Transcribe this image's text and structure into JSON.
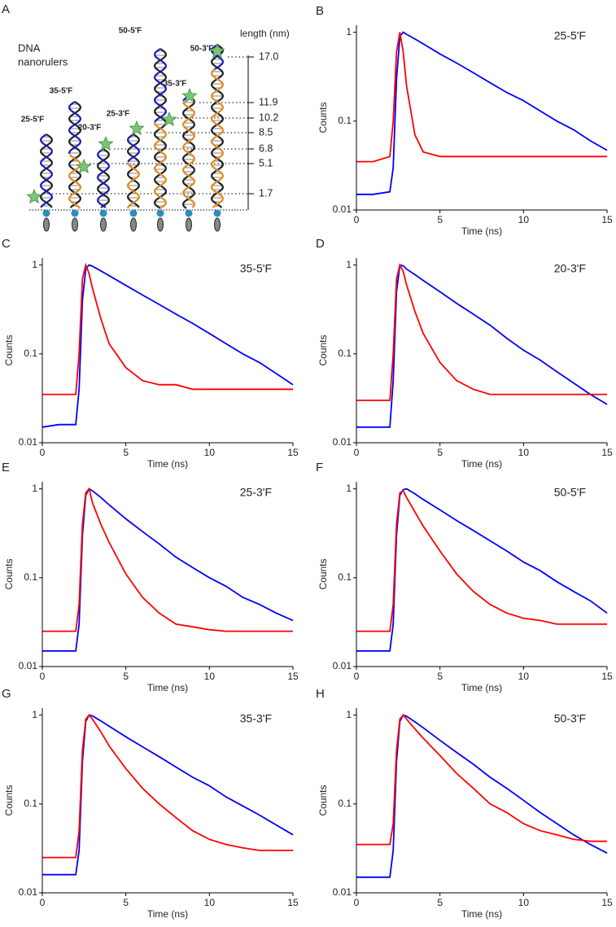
{
  "panel_a": {
    "panel_label": "A",
    "title_lines": [
      "DNA",
      "nanorulers"
    ],
    "axis_label": "length (nm)",
    "lengths": [
      "17.0",
      "11.9",
      "10.2",
      "8.5",
      "6.8",
      "5.1",
      "1.7"
    ],
    "constructs": [
      "25-5'F",
      "35-5'F",
      "20-3'F",
      "25-3'F",
      "50-5'F",
      "35-3'F",
      "50-3'F"
    ]
  },
  "chart_data": [
    {
      "type": "line",
      "panel_label": "B",
      "title": "25-5'F",
      "xlabel": "Time (ns)",
      "ylabel": "Counts",
      "log_y": true,
      "xlim": [
        0,
        15
      ],
      "ylim": [
        0.01,
        1.2
      ],
      "xticks": [
        0,
        5,
        10,
        15
      ],
      "yticks": [
        0.01,
        0.1,
        1
      ],
      "x": [
        0,
        1,
        2,
        2.2,
        2.4,
        2.6,
        2.8,
        3,
        3.5,
        4,
        5,
        6,
        7,
        8,
        9,
        10,
        11,
        12,
        13,
        14,
        15
      ],
      "series": [
        {
          "color": "#0000ff",
          "values": [
            0.015,
            0.015,
            0.016,
            0.03,
            0.3,
            0.9,
            1,
            0.95,
            0.84,
            0.74,
            0.57,
            0.45,
            0.35,
            0.27,
            0.21,
            0.17,
            0.13,
            0.1,
            0.08,
            0.06,
            0.047
          ]
        },
        {
          "color": "#ff0000",
          "values": [
            0.035,
            0.035,
            0.04,
            0.1,
            0.6,
            1,
            0.6,
            0.25,
            0.07,
            0.045,
            0.04,
            0.04,
            0.04,
            0.04,
            0.04,
            0.04,
            0.04,
            0.04,
            0.04,
            0.04,
            0.04
          ]
        }
      ]
    },
    {
      "type": "line",
      "panel_label": "C",
      "title": "35-5'F",
      "xlabel": "Time (ns)",
      "ylabel": "Counts",
      "log_y": true,
      "xlim": [
        0,
        15
      ],
      "ylim": [
        0.01,
        1.2
      ],
      "xticks": [
        0,
        5,
        10,
        15
      ],
      "yticks": [
        0.01,
        0.1,
        1
      ],
      "x": [
        0,
        1,
        2,
        2.2,
        2.4,
        2.6,
        2.8,
        3,
        3.5,
        4,
        5,
        6,
        7,
        8,
        9,
        10,
        11,
        12,
        13,
        14,
        15
      ],
      "series": [
        {
          "color": "#0000ff",
          "values": [
            0.015,
            0.016,
            0.016,
            0.04,
            0.4,
            0.9,
            1,
            0.97,
            0.86,
            0.76,
            0.59,
            0.46,
            0.36,
            0.28,
            0.22,
            0.17,
            0.13,
            0.1,
            0.08,
            0.06,
            0.045
          ]
        },
        {
          "color": "#ff0000",
          "values": [
            0.035,
            0.035,
            0.035,
            0.1,
            0.7,
            1,
            0.8,
            0.55,
            0.25,
            0.13,
            0.07,
            0.05,
            0.045,
            0.045,
            0.04,
            0.04,
            0.04,
            0.04,
            0.04,
            0.04,
            0.04
          ]
        }
      ]
    },
    {
      "type": "line",
      "panel_label": "D",
      "title": "20-3'F",
      "xlabel": "Time (ns)",
      "ylabel": "Counts",
      "log_y": true,
      "xlim": [
        0,
        15
      ],
      "ylim": [
        0.01,
        1.2
      ],
      "xticks": [
        0,
        5,
        10,
        15
      ],
      "yticks": [
        0.01,
        0.1,
        1
      ],
      "x": [
        0,
        1,
        2,
        2.2,
        2.4,
        2.6,
        2.8,
        3,
        3.5,
        4,
        5,
        6,
        7,
        8,
        9,
        10,
        11,
        12,
        13,
        14,
        15
      ],
      "series": [
        {
          "color": "#0000ff",
          "values": [
            0.015,
            0.015,
            0.015,
            0.05,
            0.5,
            1,
            0.98,
            0.9,
            0.78,
            0.67,
            0.5,
            0.37,
            0.28,
            0.21,
            0.15,
            0.11,
            0.085,
            0.063,
            0.047,
            0.035,
            0.027
          ]
        },
        {
          "color": "#ff0000",
          "values": [
            0.03,
            0.03,
            0.03,
            0.1,
            0.7,
            1,
            0.85,
            0.6,
            0.3,
            0.17,
            0.08,
            0.05,
            0.04,
            0.035,
            0.035,
            0.035,
            0.035,
            0.035,
            0.035,
            0.035,
            0.035
          ]
        }
      ]
    },
    {
      "type": "line",
      "panel_label": "E",
      "title": "25-3'F",
      "xlabel": "Time (ns)",
      "ylabel": "Counts",
      "log_y": true,
      "xlim": [
        0,
        15
      ],
      "ylim": [
        0.01,
        1.2
      ],
      "xticks": [
        0,
        5,
        10,
        15
      ],
      "yticks": [
        0.01,
        0.1,
        1
      ],
      "x": [
        0,
        1,
        2,
        2.2,
        2.4,
        2.6,
        2.8,
        3,
        3.5,
        4,
        5,
        6,
        7,
        8,
        9,
        10,
        11,
        12,
        13,
        14,
        15
      ],
      "series": [
        {
          "color": "#0000ff",
          "values": [
            0.015,
            0.015,
            0.015,
            0.03,
            0.3,
            0.85,
            1,
            0.95,
            0.8,
            0.66,
            0.46,
            0.33,
            0.24,
            0.17,
            0.13,
            0.1,
            0.08,
            0.06,
            0.05,
            0.04,
            0.033
          ]
        },
        {
          "color": "#ff0000",
          "values": [
            0.025,
            0.025,
            0.025,
            0.05,
            0.4,
            0.9,
            1,
            0.7,
            0.4,
            0.25,
            0.11,
            0.06,
            0.04,
            0.03,
            0.028,
            0.026,
            0.025,
            0.025,
            0.025,
            0.025,
            0.025
          ]
        }
      ]
    },
    {
      "type": "line",
      "panel_label": "F",
      "title": "50-5'F",
      "xlabel": "Time (ns)",
      "ylabel": "Counts",
      "log_y": true,
      "xlim": [
        0,
        15
      ],
      "ylim": [
        0.01,
        1.2
      ],
      "xticks": [
        0,
        5,
        10,
        15
      ],
      "yticks": [
        0.01,
        0.1,
        1
      ],
      "x": [
        0,
        1,
        2,
        2.2,
        2.4,
        2.6,
        2.8,
        3,
        3.5,
        4,
        5,
        6,
        7,
        8,
        9,
        10,
        11,
        12,
        13,
        14,
        15
      ],
      "series": [
        {
          "color": "#0000ff",
          "values": [
            0.015,
            0.015,
            0.015,
            0.03,
            0.3,
            0.85,
            0.98,
            1,
            0.88,
            0.76,
            0.58,
            0.44,
            0.34,
            0.26,
            0.2,
            0.15,
            0.12,
            0.09,
            0.07,
            0.055,
            0.04
          ]
        },
        {
          "color": "#ff0000",
          "values": [
            0.025,
            0.025,
            0.025,
            0.05,
            0.4,
            0.9,
            0.95,
            0.8,
            0.55,
            0.38,
            0.2,
            0.11,
            0.07,
            0.05,
            0.04,
            0.035,
            0.033,
            0.03,
            0.03,
            0.03,
            0.03
          ]
        }
      ]
    },
    {
      "type": "line",
      "panel_label": "G",
      "title": "35-3'F",
      "xlabel": "Time (ns)",
      "ylabel": "Counts",
      "log_y": true,
      "xlim": [
        0,
        15
      ],
      "ylim": [
        0.01,
        1.2
      ],
      "xticks": [
        0,
        5,
        10,
        15
      ],
      "yticks": [
        0.01,
        0.1,
        1
      ],
      "x": [
        0,
        1,
        2,
        2.2,
        2.4,
        2.6,
        2.8,
        3,
        3.5,
        4,
        5,
        6,
        7,
        8,
        9,
        10,
        11,
        12,
        13,
        14,
        15
      ],
      "series": [
        {
          "color": "#0000ff",
          "values": [
            0.016,
            0.016,
            0.016,
            0.03,
            0.3,
            0.85,
            1,
            0.98,
            0.86,
            0.75,
            0.57,
            0.44,
            0.34,
            0.26,
            0.2,
            0.16,
            0.12,
            0.095,
            0.075,
            0.058,
            0.045
          ]
        },
        {
          "color": "#ff0000",
          "values": [
            0.025,
            0.025,
            0.025,
            0.05,
            0.4,
            0.9,
            1,
            0.9,
            0.65,
            0.45,
            0.25,
            0.15,
            0.1,
            0.07,
            0.05,
            0.04,
            0.035,
            0.032,
            0.03,
            0.03,
            0.03
          ]
        }
      ]
    },
    {
      "type": "line",
      "panel_label": "H",
      "title": "50-3'F",
      "xlabel": "Time (ns)",
      "ylabel": "Counts",
      "log_y": true,
      "xlim": [
        0,
        15
      ],
      "ylim": [
        0.01,
        1.2
      ],
      "xticks": [
        0,
        5,
        10,
        15
      ],
      "yticks": [
        0.01,
        0.1,
        1
      ],
      "x": [
        0,
        1,
        2,
        2.2,
        2.4,
        2.6,
        2.8,
        3,
        3.5,
        4,
        5,
        6,
        7,
        8,
        9,
        10,
        11,
        12,
        13,
        14,
        15
      ],
      "series": [
        {
          "color": "#0000ff",
          "values": [
            0.015,
            0.015,
            0.015,
            0.03,
            0.3,
            0.85,
            1,
            0.97,
            0.84,
            0.72,
            0.52,
            0.38,
            0.28,
            0.2,
            0.15,
            0.11,
            0.08,
            0.06,
            0.045,
            0.035,
            0.028
          ]
        },
        {
          "color": "#ff0000",
          "values": [
            0.035,
            0.035,
            0.035,
            0.06,
            0.4,
            0.9,
            1,
            0.9,
            0.7,
            0.55,
            0.35,
            0.22,
            0.15,
            0.1,
            0.08,
            0.06,
            0.05,
            0.045,
            0.04,
            0.038,
            0.038
          ]
        }
      ]
    }
  ]
}
